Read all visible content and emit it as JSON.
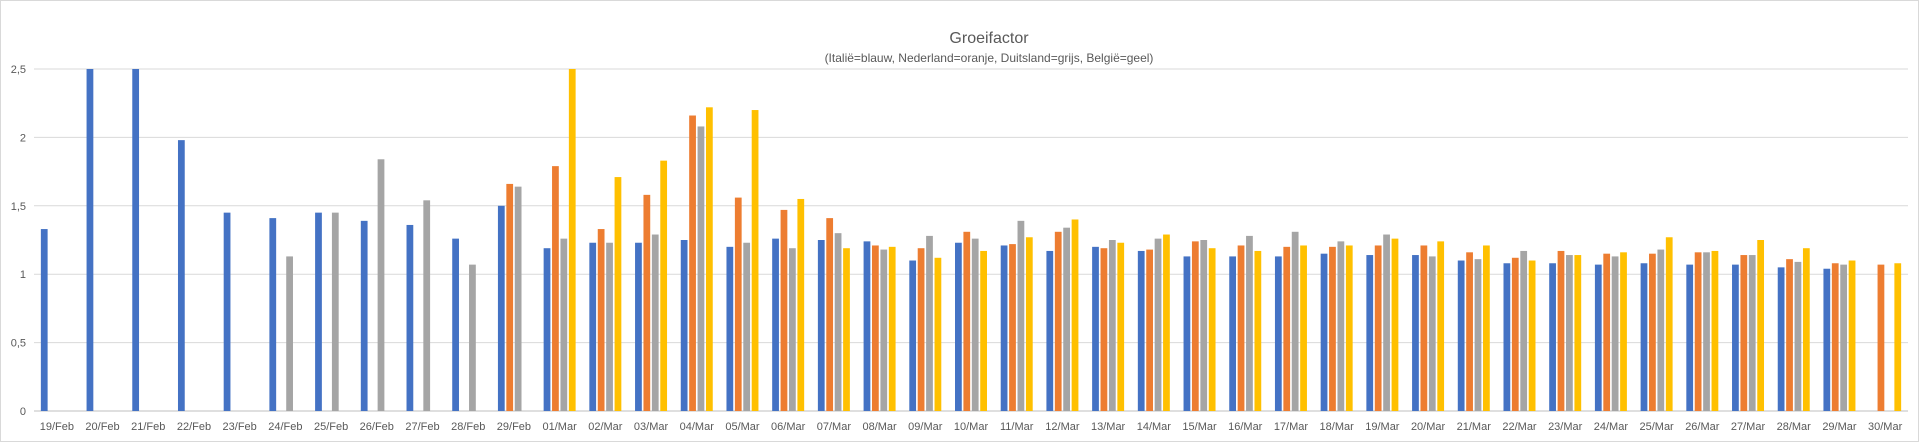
{
  "chart_data": {
    "type": "bar",
    "title": "Groeifactor",
    "subtitle": "(Italië=blauw, Nederland=oranje, Duitsland=grijs, België=geel)",
    "xlabel": "",
    "ylabel": "",
    "ylim": [
      0,
      2.5
    ],
    "yticks": [
      "0",
      "0,5",
      "1",
      "1,5",
      "2",
      "2,5"
    ],
    "grid": true,
    "categories": [
      "19/Feb",
      "20/Feb",
      "21/Feb",
      "22/Feb",
      "23/Feb",
      "24/Feb",
      "25/Feb",
      "26/Feb",
      "27/Feb",
      "28/Feb",
      "29/Feb",
      "01/Mar",
      "02/Mar",
      "03/Mar",
      "04/Mar",
      "05/Mar",
      "06/Mar",
      "07/Mar",
      "08/Mar",
      "09/Mar",
      "10/Mar",
      "11/Mar",
      "12/Mar",
      "13/Mar",
      "14/Mar",
      "15/Mar",
      "16/Mar",
      "17/Mar",
      "18/Mar",
      "19/Mar",
      "20/Mar",
      "21/Mar",
      "22/Mar",
      "23/Mar",
      "24/Mar",
      "25/Mar",
      "26/Mar",
      "27/Mar",
      "28/Mar",
      "29/Mar",
      "30/Mar"
    ],
    "series": [
      {
        "color": "#4472c4",
        "values": [
          1.33,
          2.5,
          2.5,
          1.98,
          1.45,
          1.41,
          1.45,
          1.39,
          1.36,
          1.26,
          1.5,
          1.19,
          1.23,
          1.23,
          1.25,
          1.2,
          1.26,
          1.25,
          1.24,
          1.1,
          1.23,
          1.21,
          1.17,
          1.2,
          1.17,
          1.13,
          1.13,
          1.13,
          1.15,
          1.14,
          1.14,
          1.1,
          1.08,
          1.08,
          1.07,
          1.08,
          1.07,
          1.07,
          1.05,
          1.04,
          null
        ]
      },
      {
        "color": "#ed7d31",
        "values": [
          null,
          null,
          null,
          null,
          null,
          null,
          null,
          null,
          null,
          null,
          1.66,
          1.79,
          1.33,
          1.58,
          2.16,
          1.56,
          1.47,
          1.41,
          1.21,
          1.19,
          1.31,
          1.22,
          1.31,
          1.19,
          1.18,
          1.24,
          1.21,
          1.2,
          1.2,
          1.21,
          1.21,
          1.16,
          1.12,
          1.17,
          1.15,
          1.15,
          1.16,
          1.14,
          1.11,
          1.08,
          1.07
        ]
      },
      {
        "color": "#a5a5a5",
        "values": [
          null,
          null,
          null,
          null,
          null,
          1.13,
          1.45,
          1.84,
          1.54,
          1.07,
          1.64,
          1.26,
          1.23,
          1.29,
          2.08,
          1.23,
          1.19,
          1.3,
          1.18,
          1.28,
          1.26,
          1.39,
          1.34,
          1.25,
          1.26,
          1.25,
          1.28,
          1.31,
          1.24,
          1.29,
          1.13,
          1.11,
          1.17,
          1.14,
          1.13,
          1.18,
          1.16,
          1.14,
          1.09,
          1.07,
          null
        ]
      },
      {
        "color": "#ffc000",
        "values": [
          null,
          null,
          null,
          null,
          null,
          null,
          null,
          null,
          null,
          null,
          null,
          2.5,
          1.71,
          1.83,
          2.22,
          2.2,
          1.55,
          1.19,
          1.2,
          1.12,
          1.17,
          1.27,
          1.4,
          1.23,
          1.29,
          1.19,
          1.17,
          1.21,
          1.21,
          1.26,
          1.24,
          1.21,
          1.1,
          1.14,
          1.16,
          1.27,
          1.17,
          1.25,
          1.19,
          1.1,
          1.08
        ]
      }
    ]
  }
}
